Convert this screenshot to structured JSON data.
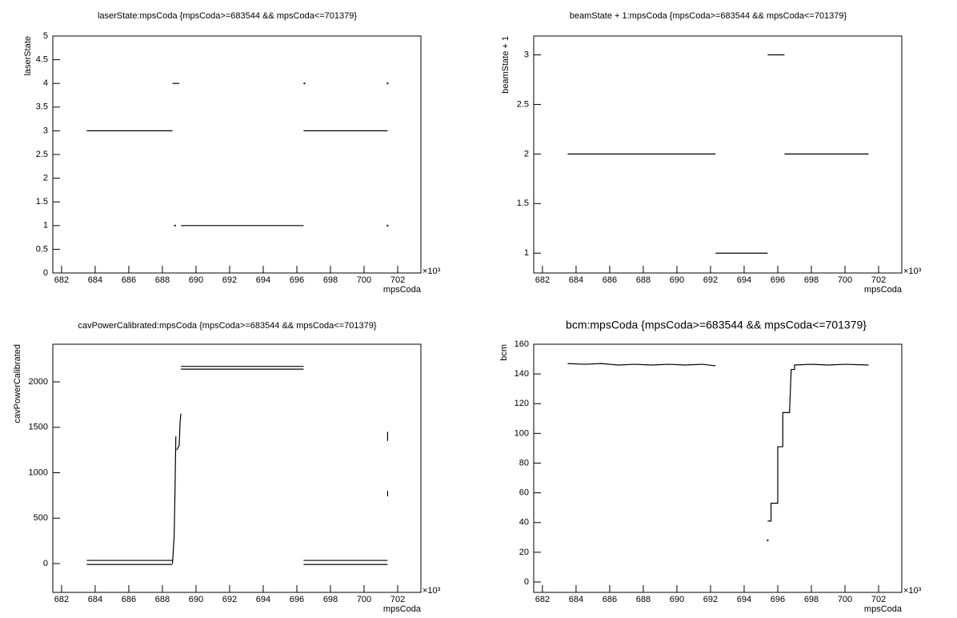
{
  "chart_data": [
    {
      "type": "line",
      "title": "laserState:mpsCoda {mpsCoda>=683544 && mpsCoda<=701379}",
      "xlabel": "mpsCoda",
      "ylabel": "laserState",
      "x_exponent": "×10³",
      "x": [
        683.5,
        688.6,
        null,
        688.6,
        689.0,
        null,
        688.75,
        null,
        689.1,
        696.4,
        null,
        696.45,
        null,
        696.4,
        701.4,
        null,
        701.4,
        null,
        701.4
      ],
      "y": [
        3,
        3,
        null,
        4,
        4,
        null,
        1,
        null,
        1,
        1,
        null,
        4,
        null,
        3,
        3,
        null,
        4,
        null,
        1
      ],
      "xlim": [
        681.48,
        703.38
      ],
      "ylim": [
        0,
        5
      ],
      "xticks": [
        682,
        684,
        686,
        688,
        690,
        692,
        694,
        696,
        698,
        700,
        702
      ],
      "yticks": [
        0,
        0.5,
        1,
        1.5,
        2,
        2.5,
        3,
        3.5,
        4,
        4.5,
        5
      ],
      "color": "#000000"
    },
    {
      "type": "line",
      "title": "beamState + 1:mpsCoda {mpsCoda>=683544 && mpsCoda<=701379}",
      "xlabel": "mpsCoda",
      "ylabel": "beamState + 1",
      "x_exponent": "×10³",
      "x": [
        683.5,
        692.3,
        null,
        692.3,
        695.4,
        null,
        695.4,
        696.4,
        null,
        696.4,
        701.4
      ],
      "y": [
        2,
        2,
        null,
        1,
        1,
        null,
        3,
        3,
        null,
        2,
        2
      ],
      "xlim": [
        681.48,
        703.38
      ],
      "ylim": [
        0.8,
        3.19
      ],
      "xticks": [
        682,
        684,
        686,
        688,
        690,
        692,
        694,
        696,
        698,
        700,
        702
      ],
      "yticks": [
        1,
        1.5,
        2,
        2.5,
        3
      ],
      "color": "#000000"
    },
    {
      "type": "line",
      "title": "cavPowerCalibrated:mpsCoda {mpsCoda>=683544 && mpsCoda<=701379}",
      "xlabel": "mpsCoda",
      "ylabel": "cavPowerCalibrated",
      "x_exponent": "×10³",
      "x": [
        683.5,
        688.6,
        null,
        683.5,
        688.6,
        null,
        688.6,
        688.7,
        688.75,
        688.8,
        null,
        688.85,
        689.0,
        689.05,
        689.1,
        null,
        689.1,
        696.4,
        null,
        689.1,
        696.4,
        null,
        696.4,
        701.4,
        null,
        696.4,
        701.4,
        null,
        701.4,
        701.4,
        null,
        701.4,
        701.4
      ],
      "y": [
        35,
        35,
        null,
        -10,
        -10,
        null,
        0,
        300,
        800,
        1400,
        null,
        1250,
        1300,
        1550,
        1650,
        null,
        2170,
        2170,
        null,
        2140,
        2140,
        null,
        35,
        35,
        null,
        -10,
        -10,
        null,
        1450,
        1350,
        null,
        800,
        740
      ],
      "xlim": [
        681.48,
        703.38
      ],
      "ylim": [
        -317,
        2414
      ],
      "xticks": [
        682,
        684,
        686,
        688,
        690,
        692,
        694,
        696,
        698,
        700,
        702
      ],
      "yticks": [
        0,
        500,
        1000,
        1500,
        2000
      ],
      "color": "#000000"
    },
    {
      "type": "line",
      "title": "bcm:mpsCoda {mpsCoda>=683544 && mpsCoda<=701379}",
      "xlabel": "mpsCoda",
      "ylabel": "bcm",
      "x_exponent": "×10³",
      "x": [
        683.5,
        684.5,
        685.5,
        686.5,
        687.5,
        688.5,
        689.5,
        690.5,
        691.5,
        692.3,
        null,
        695.4,
        null,
        695.4,
        695.6,
        695.6,
        696.0,
        696.0,
        696.3,
        696.3,
        696.7,
        696.8,
        697.0,
        697.0,
        698,
        699,
        700,
        701.4
      ],
      "y": [
        147,
        146.5,
        147,
        146,
        146.5,
        146,
        146.5,
        146,
        146.5,
        145.5,
        null,
        28,
        null,
        41,
        41,
        53,
        53,
        91,
        91,
        114,
        114,
        143,
        143,
        146,
        146.5,
        146,
        146.5,
        146
      ],
      "xlim": [
        681.48,
        703.38
      ],
      "ylim": [
        -7,
        160
      ],
      "xticks": [
        682,
        684,
        686,
        688,
        690,
        692,
        694,
        696,
        698,
        700,
        702
      ],
      "yticks": [
        0,
        20,
        40,
        60,
        80,
        100,
        120,
        140,
        160
      ],
      "color": "#000000"
    }
  ]
}
